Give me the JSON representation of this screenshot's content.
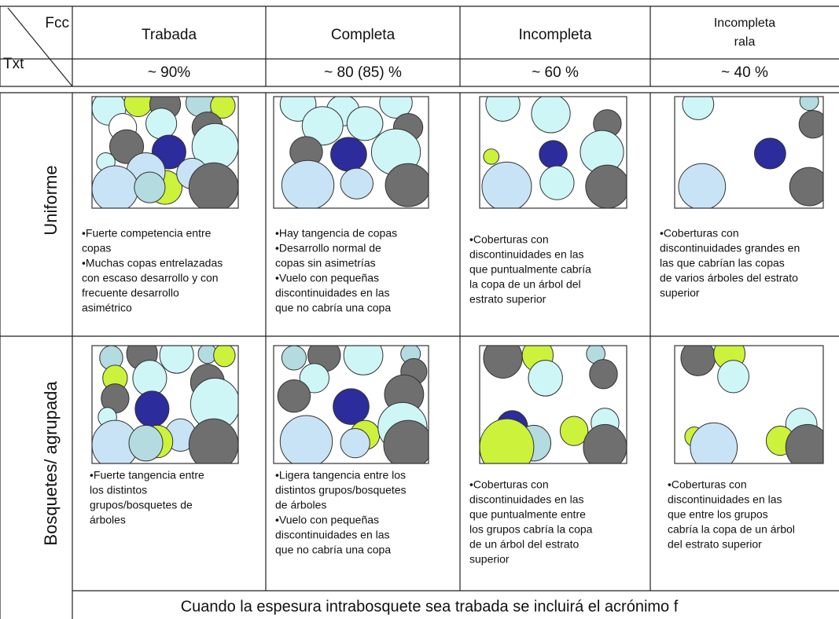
{
  "header": {
    "corner_top": "Fcc",
    "corner_bottom": "Txt",
    "columns": [
      {
        "title": [
          "Trabada"
        ],
        "cover": "~ 90%"
      },
      {
        "title": [
          "Completa"
        ],
        "cover": "~ 80 (85) %"
      },
      {
        "title": [
          "Incompleta"
        ],
        "cover": "~ 60 %"
      },
      {
        "title": [
          "Incompleta",
          "rala"
        ],
        "cover": "~ 40 %"
      }
    ]
  },
  "rows": [
    {
      "label": "Uniforme",
      "cells": [
        [
          "•Fuerte competencia entre",
          "copas",
          "•Muchas copas entrelazadas",
          "con escaso desarrollo y con",
          "frecuente desarrollo",
          "asimétrico"
        ],
        [
          "•Hay tangencia de copas",
          "•Desarrollo normal de",
          "copas sin asimetrías",
          "•Vuelo con pequeñas",
          "discontinuidades en las",
          "que no cabría una copa"
        ],
        [
          "•Coberturas con",
          "discontinuidades en las",
          "que puntualmente cabría",
          "la copa de un árbol del",
          "estrato superior"
        ],
        [
          "•Coberturas con",
          "discontinuidades grandes en",
          "las que cabrían  las copas",
          "de varios árboles del estrato",
          "superior"
        ]
      ]
    },
    {
      "label": "Bosquetes/ agrupada",
      "cells": [
        [
          "•Fuerte tangencia entre",
          "los distintos",
          "grupos/bosquetes de",
          "árboles"
        ],
        [
          "•Ligera tangencia entre los",
          "distintos grupos/bosquetes",
          "de árboles",
          "•Vuelo con pequeñas",
          "discontinuidades en las",
          "que no cabría una copa"
        ],
        [
          "•Coberturas con",
          "discontinuidades en las",
          "que puntualmente entre",
          "los grupos cabría la copa",
          "de un árbol del estrato",
          "superior"
        ],
        [
          "•Coberturas con",
          "discontinuidades en las",
          "que entre los grupos",
          "cabría la copa de un árbol",
          "del estrato superior"
        ]
      ]
    }
  ],
  "footer": "Cuando la espesura intrabosquete sea trabada se incluirá el acrónimo f"
}
